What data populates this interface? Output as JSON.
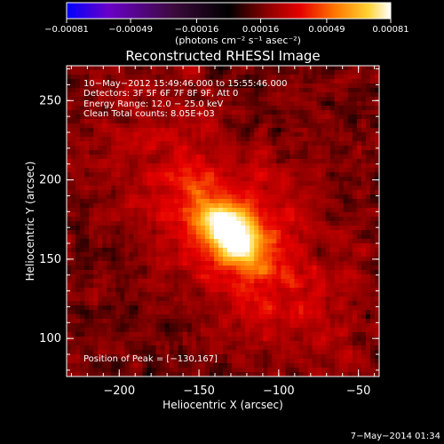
{
  "colorbar": {
    "tick_labels": [
      "-0.00081",
      "-0.00049",
      "-0.00016",
      "0.00016",
      "0.00049",
      "0.00081"
    ],
    "range": [
      -0.00081,
      0.00081
    ],
    "unit_label": "(photons cm⁻² s⁻¹ asec⁻²)",
    "colors": [
      "#0000ff",
      "#6a00c8",
      "#3c0a3c",
      "#000000",
      "#8c0000",
      "#e60000",
      "#ff7800",
      "#ffd232",
      "#ffffff"
    ]
  },
  "chart_data": {
    "type": "heatmap",
    "title": "Reconstructed RHESSI Image",
    "xlabel": "Heliocentric X (arcsec)",
    "ylabel": "Heliocentric Y (arcsec)",
    "xlim": [
      -233,
      -37
    ],
    "ylim": [
      76,
      272
    ],
    "xticks": [
      -200,
      -150,
      -100,
      -50
    ],
    "yticks": [
      100,
      150,
      200,
      250
    ],
    "xtick_labels": [
      "−200",
      "−150",
      "−100",
      "−50"
    ],
    "ytick_labels": [
      "100",
      "150",
      "200",
      "250"
    ],
    "peak_position": [
      -130,
      167
    ],
    "total_counts": 8050,
    "energy_range_kev": [
      12.0,
      25.0
    ],
    "info_lines": [
      "10−May−2012 15:49:46.000 to 15:55:46.000",
      "Detectors: 3F 5F 6F 7F 8F 9F, Att 0",
      "Energy Range: 12.0 − 25.0 keV",
      "Clean     Total counts: 8.05E+03"
    ],
    "peak_label": "Position of Peak = [−130,167]"
  },
  "footer_timestamp": "7−May−2014 01:34"
}
